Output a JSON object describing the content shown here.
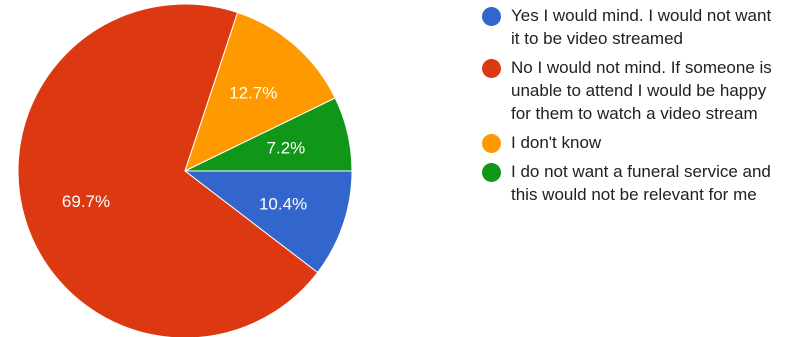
{
  "chart_data": {
    "type": "pie",
    "title": "",
    "slices": [
      {
        "label": "Yes I would mind. I would not want it to be video streamed",
        "value": 10.4,
        "display": "10.4%",
        "color": "#3366cc"
      },
      {
        "label": "No I would not mind. If someone is unable to attend I would be happy for them to watch a video stream",
        "value": 69.7,
        "display": "69.7%",
        "color": "#dc3912"
      },
      {
        "label": "I don't know",
        "value": 12.7,
        "display": "12.7%",
        "color": "#ff9900"
      },
      {
        "label": "I do not want a funeral service and this would not be relevant for me",
        "value": 7.2,
        "display": "7.2%",
        "color": "#109618"
      }
    ],
    "legend_position": "right"
  }
}
